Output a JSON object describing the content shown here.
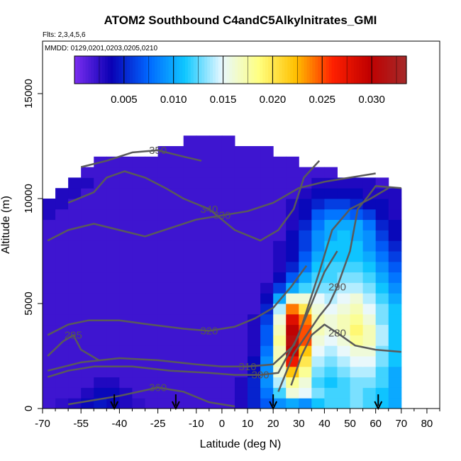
{
  "chart_data": {
    "type": "heatmap",
    "title": "ATOM2 Southbound C4andC5Alkylnitrates_GMI",
    "flights_note": "Flts: 2,3,4,5,6",
    "dates_note": "MMDD: 0129,0201,0203,0205,0210",
    "xlabel": "Latitude (deg N)",
    "ylabel": "Altitude (m)",
    "xlim": [
      -70,
      85
    ],
    "ylim": [
      0,
      17500
    ],
    "x_ticks": [
      -70,
      -55,
      -40,
      -25,
      -10,
      0,
      10,
      20,
      30,
      40,
      50,
      60,
      70,
      80
    ],
    "x_tick_labels": [
      "-70",
      "-55",
      "-40",
      "-25",
      "-10",
      "0",
      "10",
      "20",
      "30",
      "40",
      "50",
      "60",
      "70",
      "80"
    ],
    "y_ticks": [
      0,
      5000,
      10000,
      15000
    ],
    "y_tick_labels": [
      "0",
      "5000",
      "10000",
      "15000"
    ],
    "colorbar": {
      "range": [
        0.0,
        0.0335
      ],
      "ticks": [
        0.005,
        0.01,
        0.015,
        0.02,
        0.025,
        0.03
      ],
      "tick_labels": [
        "0.005",
        "0.010",
        "0.015",
        "0.020",
        "0.025",
        "0.030"
      ],
      "colors": [
        "#7b2ef0",
        "#0a00b4",
        "#0066ff",
        "#10c8ff",
        "#e8f8ff",
        "#ffff80",
        "#ffc000",
        "#ff2000",
        "#c00000",
        "#a52a2a"
      ]
    },
    "lat_bins": [
      -67.5,
      -62.5,
      -57.5,
      -52.5,
      -47.5,
      -42.5,
      -37.5,
      -32.5,
      -27.5,
      -22.5,
      -17.5,
      -12.5,
      -7.5,
      -2.5,
      2.5,
      7.5,
      12.5,
      17.5,
      22.5,
      27.5,
      32.5,
      37.5,
      42.5,
      47.5,
      52.5,
      57.5,
      62.5,
      67.5
    ],
    "alt_bins": [
      250,
      750,
      1250,
      1750,
      2250,
      2750,
      3250,
      3750,
      4250,
      4750,
      5250,
      5750,
      6250,
      6750,
      7250,
      7750,
      8250,
      8750,
      9250,
      9750,
      10250,
      10750,
      11250,
      11750,
      12250,
      12750
    ],
    "values": [
      [
        0.002,
        0.0025,
        0.003,
        0.004,
        0.0045,
        0.004,
        0.003,
        0.0025,
        0.002,
        0.002,
        0.002,
        0.002,
        0.002,
        0.002,
        0.002,
        0.003,
        0.005,
        0.007,
        0.009,
        0.01,
        0.009,
        0.011,
        0.012,
        0.012,
        0.013,
        0.012,
        0.011,
        0.01
      ],
      [
        0.002,
        0.002,
        0.002,
        0.003,
        0.004,
        0.004,
        0.003,
        0.002,
        0.002,
        0.002,
        0.002,
        0.002,
        0.002,
        0.002,
        0.002,
        0.003,
        0.005,
        0.008,
        0.012,
        0.016,
        0.015,
        0.013,
        0.012,
        0.012,
        0.013,
        0.012,
        0.011,
        0.01
      ],
      [
        0.002,
        0.002,
        0.002,
        0.002,
        0.003,
        0.003,
        0.002,
        0.002,
        0.002,
        0.002,
        0.002,
        0.002,
        0.002,
        0.002,
        0.002,
        0.003,
        0.005,
        0.009,
        0.014,
        0.018,
        0.016,
        0.012,
        0.011,
        0.012,
        0.013,
        0.013,
        0.012,
        0.01
      ],
      [
        0.002,
        0.002,
        0.002,
        0.002,
        0.002,
        0.002,
        0.002,
        0.002,
        0.002,
        0.002,
        0.002,
        0.002,
        0.002,
        0.002,
        0.002,
        0.002,
        0.004,
        0.009,
        0.016,
        0.022,
        0.018,
        0.013,
        0.012,
        0.013,
        0.014,
        0.014,
        0.012,
        0.01
      ],
      [
        0.002,
        0.002,
        0.002,
        0.002,
        0.002,
        0.002,
        0.002,
        0.002,
        0.002,
        0.002,
        0.002,
        0.002,
        0.002,
        0.002,
        0.002,
        0.002,
        0.004,
        0.009,
        0.017,
        0.027,
        0.02,
        0.014,
        0.013,
        0.014,
        0.015,
        0.015,
        0.013,
        0.011
      ],
      [
        0.002,
        0.002,
        0.002,
        0.002,
        0.002,
        0.002,
        0.002,
        0.002,
        0.002,
        0.002,
        0.002,
        0.002,
        0.002,
        0.002,
        0.002,
        0.002,
        0.003,
        0.008,
        0.017,
        0.03,
        0.022,
        0.015,
        0.014,
        0.015,
        0.016,
        0.016,
        0.013,
        0.011
      ],
      [
        0.002,
        0.002,
        0.002,
        0.002,
        0.002,
        0.002,
        0.002,
        0.002,
        0.002,
        0.002,
        0.002,
        0.002,
        0.002,
        0.002,
        0.002,
        0.002,
        0.003,
        0.007,
        0.018,
        0.031,
        0.025,
        0.016,
        0.015,
        0.016,
        0.018,
        0.017,
        0.014,
        0.011
      ],
      [
        0.002,
        0.002,
        0.002,
        0.002,
        0.002,
        0.002,
        0.002,
        0.002,
        0.002,
        0.002,
        0.002,
        0.002,
        0.002,
        0.002,
        0.002,
        0.002,
        0.003,
        0.007,
        0.017,
        0.03,
        0.025,
        0.017,
        0.016,
        0.017,
        0.019,
        0.017,
        0.014,
        0.011
      ],
      [
        0.002,
        0.002,
        0.002,
        0.002,
        0.002,
        0.002,
        0.002,
        0.002,
        0.002,
        0.002,
        0.002,
        0.002,
        0.002,
        0.002,
        0.002,
        0.002,
        0.003,
        0.006,
        0.016,
        0.028,
        0.024,
        0.017,
        0.016,
        0.017,
        0.018,
        0.016,
        0.013,
        0.011
      ],
      [
        0.002,
        0.002,
        0.002,
        0.002,
        0.002,
        0.002,
        0.002,
        0.002,
        0.002,
        0.002,
        0.002,
        0.002,
        0.002,
        0.002,
        0.002,
        0.002,
        0.002,
        0.005,
        0.014,
        0.024,
        0.02,
        0.016,
        0.015,
        0.016,
        0.017,
        0.015,
        0.013,
        0.011
      ],
      [
        0.002,
        0.002,
        0.002,
        0.002,
        0.002,
        0.002,
        0.002,
        0.002,
        0.002,
        0.002,
        0.002,
        0.002,
        0.002,
        0.002,
        0.002,
        0.002,
        0.002,
        0.004,
        0.01,
        0.016,
        0.016,
        0.015,
        0.014,
        0.015,
        0.016,
        0.014,
        0.012,
        0.01
      ],
      [
        0.002,
        0.002,
        0.002,
        0.002,
        0.002,
        0.002,
        0.002,
        0.002,
        0.002,
        0.002,
        0.002,
        0.002,
        0.002,
        0.002,
        0.002,
        0.002,
        0.002,
        0.003,
        0.006,
        0.01,
        0.012,
        0.013,
        0.013,
        0.014,
        0.014,
        0.013,
        0.011,
        0.009
      ],
      [
        0.002,
        0.002,
        0.002,
        0.002,
        0.002,
        0.002,
        0.002,
        0.002,
        0.002,
        0.002,
        0.002,
        0.002,
        0.002,
        0.002,
        0.002,
        0.002,
        0.002,
        0.002,
        0.004,
        0.007,
        0.01,
        0.012,
        0.012,
        0.013,
        0.013,
        0.012,
        0.01,
        0.008
      ],
      [
        0.002,
        0.002,
        0.002,
        0.002,
        0.002,
        0.002,
        0.002,
        0.002,
        0.002,
        0.002,
        0.002,
        0.002,
        0.002,
        0.002,
        0.002,
        0.002,
        0.002,
        0.002,
        0.003,
        0.005,
        0.008,
        0.011,
        0.012,
        0.012,
        0.012,
        0.011,
        0.009,
        0.007
      ],
      [
        0.002,
        0.002,
        0.002,
        0.002,
        0.002,
        0.002,
        0.002,
        0.002,
        0.002,
        0.002,
        0.002,
        0.002,
        0.002,
        0.002,
        0.002,
        0.002,
        0.002,
        0.002,
        0.003,
        0.004,
        0.007,
        0.01,
        0.011,
        0.011,
        0.011,
        0.01,
        0.008,
        0.006
      ],
      [
        0.002,
        0.002,
        0.002,
        0.002,
        0.002,
        0.002,
        0.002,
        0.002,
        0.002,
        0.002,
        0.002,
        0.002,
        0.002,
        0.002,
        0.002,
        0.002,
        0.002,
        0.002,
        0.003,
        0.004,
        0.006,
        0.009,
        0.011,
        0.011,
        0.011,
        0.009,
        0.007,
        0.005
      ],
      [
        0.002,
        0.002,
        0.002,
        0.002,
        0.002,
        0.002,
        0.002,
        0.002,
        0.002,
        0.002,
        0.002,
        0.002,
        0.002,
        0.002,
        0.002,
        0.002,
        0.002,
        0.002,
        0.002,
        0.004,
        0.006,
        0.009,
        0.01,
        0.011,
        0.01,
        0.009,
        0.006,
        0.004
      ],
      [
        0.002,
        0.002,
        0.002,
        0.002,
        0.002,
        0.002,
        0.002,
        0.002,
        0.002,
        0.002,
        0.002,
        0.002,
        0.002,
        0.002,
        0.002,
        0.002,
        0.002,
        0.002,
        0.002,
        0.003,
        0.005,
        0.008,
        0.01,
        0.01,
        0.01,
        0.008,
        0.005,
        0.004
      ],
      [
        0.003,
        0.002,
        0.002,
        0.002,
        0.002,
        0.002,
        0.002,
        0.002,
        0.002,
        0.002,
        0.002,
        0.002,
        0.002,
        0.002,
        0.002,
        0.002,
        0.002,
        0.002,
        0.002,
        0.003,
        0.004,
        0.007,
        0.008,
        0.008,
        0.007,
        0.006,
        0.004,
        0.003
      ],
      [
        0.003,
        0.003,
        0.002,
        0.002,
        0.002,
        0.002,
        0.002,
        0.002,
        0.002,
        0.002,
        0.002,
        0.002,
        0.002,
        0.002,
        0.002,
        0.002,
        0.002,
        0.002,
        0.002,
        0.003,
        0.004,
        0.005,
        0.006,
        0.006,
        0.005,
        0.004,
        0.004,
        0.003
      ],
      [
        null,
        0.003,
        0.003,
        0.002,
        0.002,
        0.002,
        0.002,
        0.002,
        0.002,
        0.002,
        0.002,
        0.002,
        0.002,
        0.002,
        0.002,
        0.002,
        0.002,
        0.002,
        0.002,
        0.002,
        0.003,
        0.004,
        0.004,
        0.004,
        0.004,
        0.003,
        0.003,
        0.003
      ],
      [
        null,
        null,
        0.003,
        0.003,
        0.002,
        0.002,
        0.002,
        0.002,
        0.002,
        0.002,
        0.002,
        0.002,
        0.002,
        0.002,
        0.002,
        0.002,
        0.002,
        0.002,
        0.002,
        0.002,
        0.002,
        0.003,
        0.003,
        0.003,
        0.003,
        0.003,
        0.002,
        null
      ],
      [
        null,
        null,
        null,
        0.002,
        0.002,
        0.002,
        0.002,
        0.002,
        0.002,
        0.002,
        0.002,
        0.002,
        0.002,
        0.002,
        0.002,
        0.002,
        0.002,
        0.002,
        0.002,
        0.002,
        0.002,
        0.002,
        0.002,
        null,
        null,
        null,
        null,
        null
      ],
      [
        null,
        null,
        null,
        null,
        0.002,
        0.002,
        0.002,
        0.002,
        0.002,
        0.002,
        0.002,
        0.002,
        0.002,
        0.002,
        0.002,
        0.002,
        0.002,
        0.002,
        0.002,
        0.002,
        null,
        null,
        null,
        null,
        null,
        null,
        null,
        null
      ],
      [
        null,
        null,
        null,
        null,
        null,
        null,
        null,
        null,
        null,
        0.002,
        0.002,
        0.002,
        0.002,
        0.002,
        0.002,
        0.002,
        0.002,
        0.002,
        null,
        null,
        null,
        null,
        null,
        null,
        null,
        null,
        null,
        null
      ],
      [
        null,
        null,
        null,
        null,
        null,
        null,
        null,
        null,
        null,
        null,
        null,
        0.002,
        0.002,
        0.002,
        0.002,
        null,
        null,
        null,
        null,
        null,
        null,
        null,
        null,
        null,
        null,
        null,
        null,
        null
      ]
    ],
    "contour_labels": [
      "280",
      "290",
      "300",
      "310",
      "320",
      "330",
      "340",
      "350",
      "360",
      "295"
    ],
    "contours": [
      [
        [
          27,
          1100
        ],
        [
          31,
          2500
        ],
        [
          35,
          3500
        ],
        [
          40,
          4000
        ],
        [
          45,
          3600
        ],
        [
          52,
          3000
        ],
        [
          60,
          2800
        ],
        [
          70,
          2700
        ]
      ],
      [
        [
          22,
          800
        ],
        [
          28,
          2600
        ],
        [
          33,
          3500
        ],
        [
          38,
          4400
        ],
        [
          42,
          5000
        ],
        [
          45,
          5800
        ],
        [
          50,
          7500
        ],
        [
          53,
          9500
        ],
        [
          57,
          10100
        ],
        [
          60,
          10600
        ],
        [
          70,
          10500
        ]
      ],
      [
        [
          -68,
          1500
        ],
        [
          -60,
          1800
        ],
        [
          -50,
          2000
        ],
        [
          -35,
          2000
        ],
        [
          -20,
          1800
        ],
        [
          -5,
          1700
        ],
        [
          5,
          1600
        ],
        [
          15,
          1600
        ],
        [
          22,
          1700
        ],
        [
          30,
          3500
        ],
        [
          38,
          6500
        ],
        [
          43,
          8500
        ],
        [
          50,
          9500
        ],
        [
          58,
          10000
        ],
        [
          65,
          10500
        ]
      ],
      [
        [
          -68,
          1800
        ],
        [
          -55,
          2200
        ],
        [
          -40,
          2400
        ],
        [
          -25,
          2300
        ],
        [
          -10,
          2100
        ],
        [
          0,
          2000
        ],
        [
          10,
          2000
        ],
        [
          20,
          2100
        ],
        [
          28,
          3000
        ],
        [
          35,
          5000
        ],
        [
          40,
          6500
        ],
        [
          45,
          7500
        ]
      ],
      [
        [
          -68,
          3500
        ],
        [
          -60,
          4000
        ],
        [
          -52,
          4200
        ],
        [
          -40,
          4200
        ],
        [
          -28,
          4000
        ],
        [
          -15,
          3800
        ],
        [
          -5,
          3700
        ],
        [
          5,
          3900
        ],
        [
          13,
          4300
        ],
        [
          20,
          4800
        ],
        [
          27,
          5800
        ],
        [
          33,
          6800
        ]
      ],
      [
        [
          -68,
          8000
        ],
        [
          -60,
          8500
        ],
        [
          -50,
          8800
        ],
        [
          -40,
          8500
        ],
        [
          -30,
          8200
        ],
        [
          -20,
          8600
        ],
        [
          -10,
          9000
        ],
        [
          0,
          9200
        ],
        [
          10,
          9400
        ],
        [
          20,
          9800
        ],
        [
          30,
          10500
        ],
        [
          40,
          10800
        ],
        [
          50,
          11000
        ],
        [
          60,
          11200
        ]
      ],
      [
        [
          -60,
          9800
        ],
        [
          -50,
          10300
        ],
        [
          -45,
          11000
        ],
        [
          -38,
          11300
        ],
        [
          -30,
          11000
        ],
        [
          -22,
          10500
        ],
        [
          -15,
          10000
        ],
        [
          -5,
          9500
        ],
        [
          5,
          8500
        ],
        [
          15,
          8000
        ],
        [
          22,
          8500
        ],
        [
          28,
          9500
        ],
        [
          32,
          11000
        ],
        [
          38,
          11800
        ]
      ],
      [
        [
          -55,
          11500
        ],
        [
          -45,
          11800
        ],
        [
          -35,
          12200
        ],
        [
          -25,
          12300
        ],
        [
          -15,
          12000
        ],
        [
          -8,
          11800
        ]
      ],
      [
        [
          -60,
          200
        ],
        [
          -50,
          400
        ],
        [
          -40,
          600
        ],
        [
          -25,
          1000
        ],
        [
          -15,
          800
        ],
        [
          -5,
          300
        ],
        [
          5,
          100
        ]
      ],
      [
        [
          -68,
          2500
        ],
        [
          -62,
          3200
        ],
        [
          -58,
          3500
        ],
        [
          -55,
          2800
        ],
        [
          -48,
          2300
        ]
      ]
    ],
    "arrow_latitudes": [
      -42,
      -18,
      20,
      61
    ],
    "grid": false,
    "legend": "colorbar at top inside plot"
  }
}
